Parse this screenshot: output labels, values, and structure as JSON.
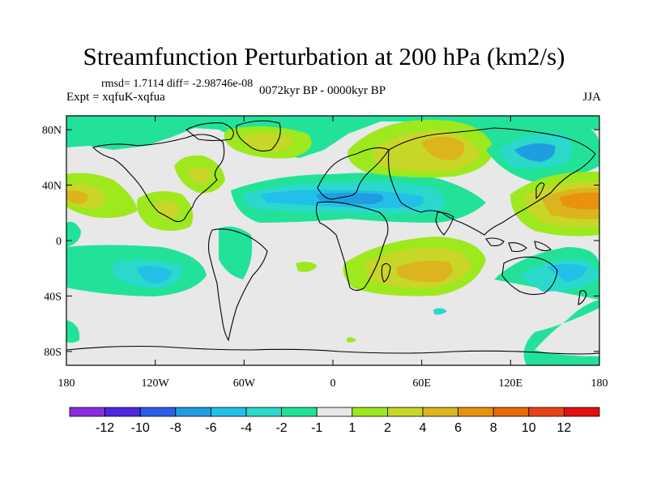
{
  "title": "Streamfunction Perturbation at 200 hPa (km2/s)",
  "stats": "rmsd= 1.7114 diff= -2.98746e-08",
  "experiment": "Expt = xqfuK-xqfua",
  "period": "0072kyr BP - 0000kyr BP",
  "season": "JJA",
  "lat_ticks": [
    {
      "value": 80,
      "label": "80N"
    },
    {
      "value": 40,
      "label": "40N"
    },
    {
      "value": 0,
      "label": "0"
    },
    {
      "value": -40,
      "label": "40S"
    },
    {
      "value": -80,
      "label": "80S"
    }
  ],
  "lon_ticks": [
    {
      "value": -180,
      "label": "180"
    },
    {
      "value": -120,
      "label": "120W"
    },
    {
      "value": -60,
      "label": "60W"
    },
    {
      "value": 0,
      "label": "0"
    },
    {
      "value": 60,
      "label": "60E"
    },
    {
      "value": 120,
      "label": "120E"
    },
    {
      "value": 180,
      "label": "180"
    }
  ],
  "colorbar": {
    "labels": [
      "-12",
      "-10",
      "-8",
      "-6",
      "-4",
      "-2",
      "-1",
      "1",
      "2",
      "4",
      "6",
      "8",
      "10",
      "12"
    ],
    "colors": [
      "#8b2be2",
      "#4b28e0",
      "#2a5ee8",
      "#1e9ee0",
      "#22c0e8",
      "#2ad8cc",
      "#22e29a",
      "#e8e8e8",
      "#9ee81e",
      "#c8d628",
      "#dcb41e",
      "#e8920e",
      "#ea6a0a",
      "#ea4216",
      "#e4100e"
    ]
  }
}
